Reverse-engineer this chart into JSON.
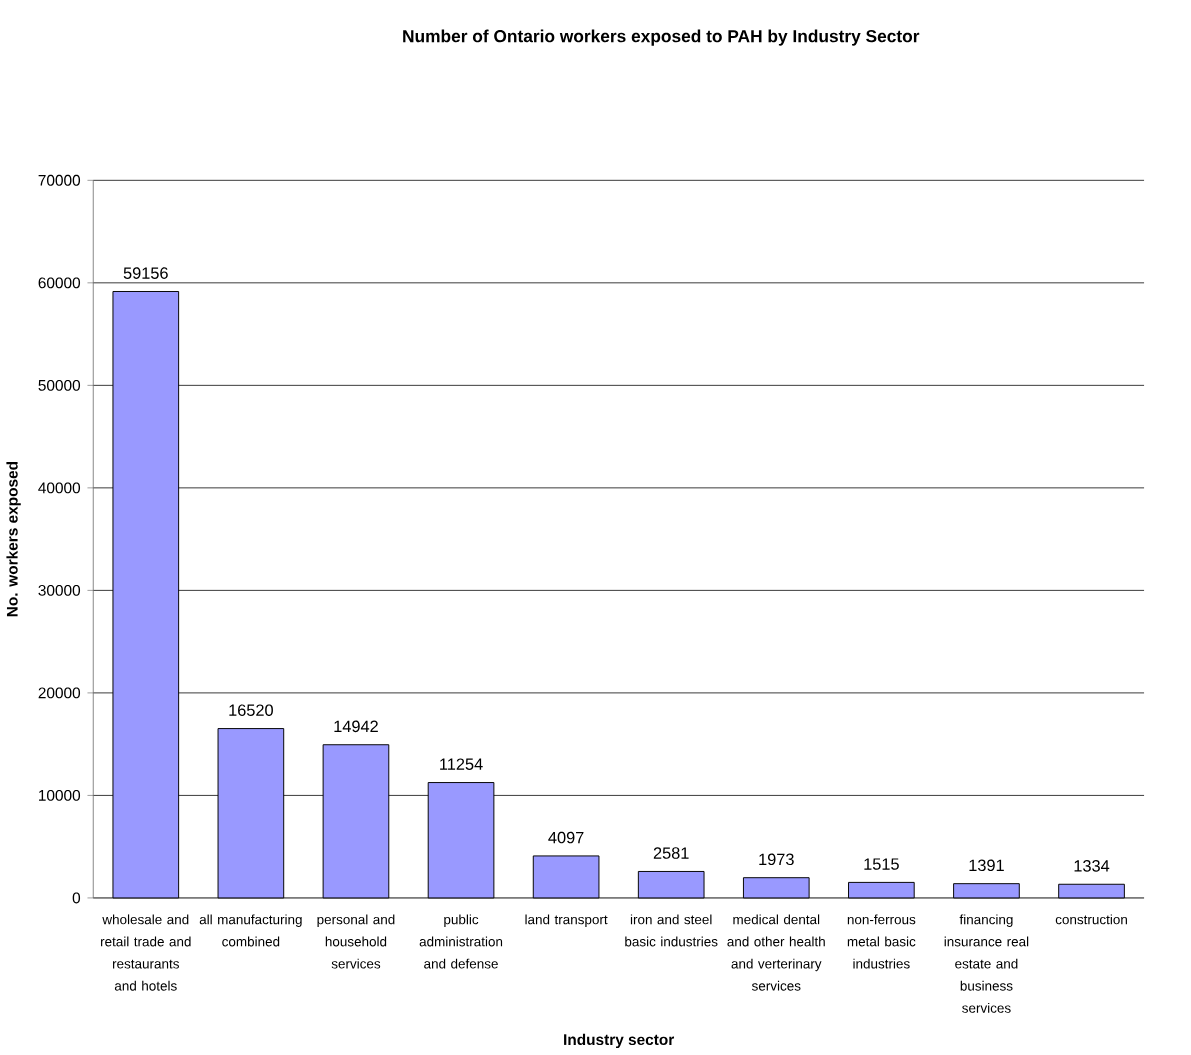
{
  "chart_data": {
    "type": "bar",
    "title": "Number of Ontario workers exposed to PAH by Industry Sector",
    "xlabel": "Industry sector",
    "ylabel": "No. workers exposed",
    "categories": [
      "wholesale and retail trade and restaurants and hotels",
      "all manufacturing combined",
      "personal and household services",
      "public administration and defense",
      "land transport",
      "iron and steel basic industries",
      "medical dental and other health and verterinary services",
      "non-ferrous metal basic industries",
      "financing insurance real estate and business services",
      "construction"
    ],
    "values": [
      59156,
      16520,
      14942,
      11254,
      4097,
      2581,
      1973,
      1515,
      1391,
      1334
    ],
    "color": "#9999ff",
    "ylim": [
      0,
      70000
    ],
    "yticks": [
      0,
      10000,
      20000,
      30000,
      40000,
      50000,
      60000,
      70000
    ],
    "grid": "y",
    "data_labels": true
  }
}
